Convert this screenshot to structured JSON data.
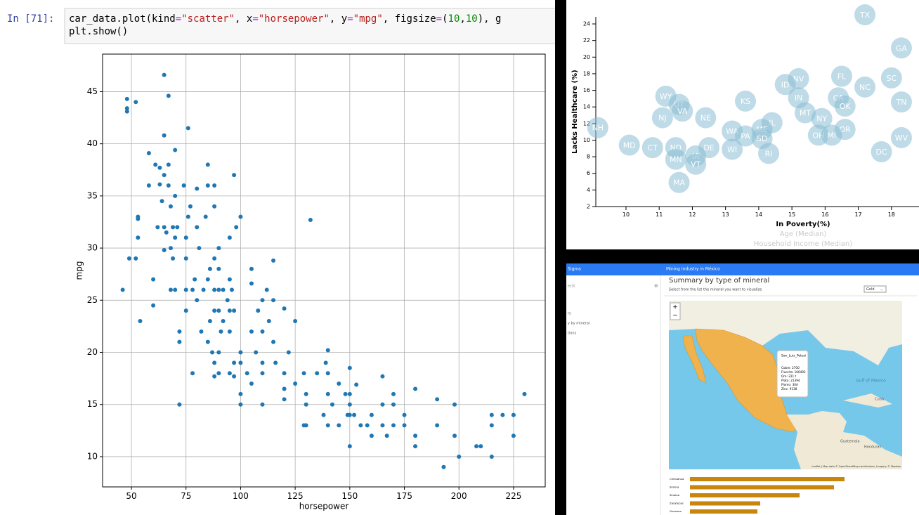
{
  "notebook": {
    "prompt": "In [71]:",
    "code": [
      [
        "car_data.plot(kind",
        "=",
        "\"scatter\"",
        ", x",
        "=",
        "\"horsepower\"",
        ", y",
        "=",
        "\"mpg\"",
        ", figsize",
        "=",
        "(",
        "10",
        ",",
        "10",
        "), g"
      ],
      [
        "plt.show()"
      ]
    ]
  },
  "chart_data": [
    {
      "type": "scatter",
      "xlabel": "horsepower",
      "ylabel": "mpg",
      "color": "#1f77b4",
      "grid": true,
      "xlim": [
        36.8,
        239.5
      ],
      "ylim": [
        7.1,
        48.6
      ],
      "xticks": [
        50,
        75,
        100,
        125,
        150,
        175,
        200,
        225
      ],
      "yticks": [
        10,
        15,
        20,
        25,
        30,
        35,
        40,
        45
      ],
      "x": [
        46,
        48,
        48,
        48,
        49,
        52,
        52,
        53,
        53,
        53,
        54,
        58,
        58,
        60,
        60,
        61,
        62,
        63,
        63,
        64,
        65,
        65,
        65,
        65,
        65,
        66,
        67,
        67,
        67,
        68,
        68,
        68,
        69,
        69,
        70,
        70,
        70,
        70,
        71,
        72,
        72,
        72,
        74,
        75,
        75,
        75,
        75,
        76,
        76,
        77,
        78,
        78,
        79,
        80,
        80,
        80,
        81,
        82,
        83,
        84,
        85,
        85,
        85,
        85,
        86,
        86,
        87,
        88,
        88,
        88,
        88,
        88,
        88,
        88,
        90,
        90,
        90,
        90,
        90,
        90,
        91,
        92,
        92,
        94,
        95,
        95,
        95,
        95,
        95,
        96,
        97,
        97,
        97,
        97,
        98,
        100,
        100,
        100,
        100,
        100,
        103,
        105,
        105,
        105,
        105,
        107,
        108,
        110,
        110,
        110,
        110,
        110,
        112,
        113,
        115,
        115,
        115,
        116,
        120,
        120,
        120,
        120,
        122,
        125,
        125,
        129,
        129,
        130,
        130,
        130,
        132,
        135,
        138,
        139,
        140,
        140,
        140,
        140,
        142,
        145,
        145,
        148,
        149,
        150,
        150,
        150,
        150,
        150,
        152,
        153,
        155,
        158,
        160,
        160,
        165,
        165,
        165,
        167,
        170,
        170,
        170,
        175,
        175,
        180,
        180,
        180,
        190,
        190,
        193,
        198,
        198,
        200,
        208,
        210,
        215,
        215,
        215,
        220,
        225,
        225,
        230
      ],
      "y": [
        26,
        43.1,
        43.4,
        44.3,
        29,
        44,
        29,
        32.8,
        33,
        31,
        23,
        36,
        39.1,
        24.5,
        27,
        38,
        32,
        36.1,
        37.7,
        34.5,
        46.6,
        40.8,
        37,
        32,
        29.8,
        31.5,
        44.6,
        38,
        36,
        34,
        30,
        26,
        32,
        29,
        39.4,
        35,
        31,
        26,
        32,
        21,
        22,
        15,
        36,
        31,
        29,
        26,
        24,
        41.5,
        33,
        34,
        18,
        26,
        27,
        35.7,
        32,
        25,
        30,
        22,
        26,
        33,
        38,
        36,
        27,
        21,
        28,
        23,
        20,
        36,
        34,
        29,
        26,
        24,
        19,
        17.7,
        26,
        30,
        28,
        24,
        20,
        18,
        22,
        26,
        23,
        25,
        31,
        27,
        24,
        22,
        18,
        26,
        24,
        19,
        37,
        17.7,
        32,
        33,
        20,
        19,
        16,
        15,
        18,
        28,
        26.6,
        22,
        17,
        20,
        24,
        25,
        22,
        19,
        18,
        15,
        26,
        23,
        28.8,
        25,
        21,
        19,
        24.2,
        18,
        16.5,
        15.5,
        20,
        23,
        17,
        13,
        18,
        16,
        15,
        13,
        32.7,
        18,
        14,
        19,
        20.2,
        18,
        16,
        13,
        15,
        17,
        13,
        16,
        14,
        18.5,
        16,
        15,
        14,
        11,
        14,
        16.9,
        13,
        13,
        14,
        12,
        17.7,
        15,
        13,
        12,
        16,
        15,
        13,
        14,
        13,
        16.5,
        12,
        11,
        15.5,
        13,
        9,
        15,
        12,
        10,
        11,
        11,
        14,
        13,
        10,
        14,
        14,
        12,
        16
      ]
    },
    {
      "type": "scatter",
      "xlabel": "In Poverty(%)",
      "ylabel": "Lacks Healthcare (%)",
      "x_axis_options": [
        "Age (Median)",
        "Household Income (Median)"
      ],
      "color": "#89bdd3",
      "xlim": [
        9.09,
        18.83
      ],
      "ylim": [
        2,
        24.85
      ],
      "xticks": [
        10,
        11,
        12,
        13,
        14,
        15,
        16,
        17,
        18
      ],
      "yticks": [
        2,
        4,
        6,
        8,
        10,
        12,
        14,
        16,
        18,
        20,
        22,
        24
      ],
      "labels": [
        "TX",
        "GA",
        "FL",
        "SC",
        "NV",
        "ID",
        "NC",
        "WY",
        "IN",
        "KS",
        "CA",
        "TN",
        "OK",
        "UT",
        "VA",
        "NE",
        "NJ",
        "MT",
        "NY",
        "IL",
        "NH",
        "WA",
        "ME",
        "PA",
        "OR",
        "OH",
        "MI",
        "SD",
        "WV",
        "MD",
        "CT",
        "ND",
        "DE",
        "WI",
        "RI",
        "DC",
        "IA",
        "MN",
        "VT",
        "MA"
      ],
      "x": [
        17.2,
        18.3,
        16.5,
        18.0,
        15.2,
        14.8,
        17.2,
        11.2,
        15.2,
        13.6,
        16.4,
        18.3,
        16.6,
        11.6,
        11.7,
        12.4,
        11.1,
        15.4,
        15.9,
        14.4,
        9.15,
        13.2,
        14.1,
        13.6,
        16.6,
        15.8,
        16.2,
        14.1,
        18.3,
        10.1,
        10.8,
        11.5,
        12.5,
        13.2,
        14.3,
        17.7,
        12.1,
        11.5,
        12.1,
        11.6
      ],
      "y": [
        25.1,
        21.1,
        17.7,
        17.5,
        17.4,
        16.7,
        16.4,
        15.3,
        15.1,
        14.7,
        15.1,
        14.6,
        14.1,
        14.3,
        13.5,
        12.7,
        12.7,
        13.3,
        12.6,
        12.1,
        11.5,
        11.1,
        11.3,
        10.5,
        11.3,
        10.6,
        10.6,
        10.2,
        10.3,
        9.4,
        9.1,
        9.1,
        9.1,
        8.9,
        8.4,
        8.6,
        8.1,
        7.7,
        7.1,
        4.9
      ]
    },
    {
      "type": "hbar",
      "color": "#c8860d",
      "categories": [
        "Chihuahua",
        "Sonora",
        "Sinaloa",
        "Zacatecas",
        "Guerrero"
      ],
      "values": [
        220,
        205,
        156,
        100,
        96
      ]
    }
  ],
  "dashboard": {
    "brand": "Sigma",
    "app_title": "Mining Industry in México",
    "sidebar": [
      "ects",
      "rs",
      "y by mineral",
      "tions"
    ],
    "title": "Summary by type of mineral",
    "subtitle": "Select from the list the mineral you want to visualize",
    "select": "Gold",
    "map": {
      "zoom_in": "+",
      "zoom_out": "−",
      "labels": [
        "Gulf of Mexico",
        "Cuba",
        "Guatemala",
        "Honduras"
      ],
      "attribution": "Leaflet | Map data © OpenStreetMap contributors, Imagery © Mapbox",
      "popup": {
        "title": "San_Luis_Potosi",
        "lines": [
          "Cobre: 2700",
          "Fluorita: 166492",
          "Oro: 221 t",
          "Plata: 21394",
          "Plomo: 30A",
          "Zinc: 9138"
        ]
      }
    }
  }
}
